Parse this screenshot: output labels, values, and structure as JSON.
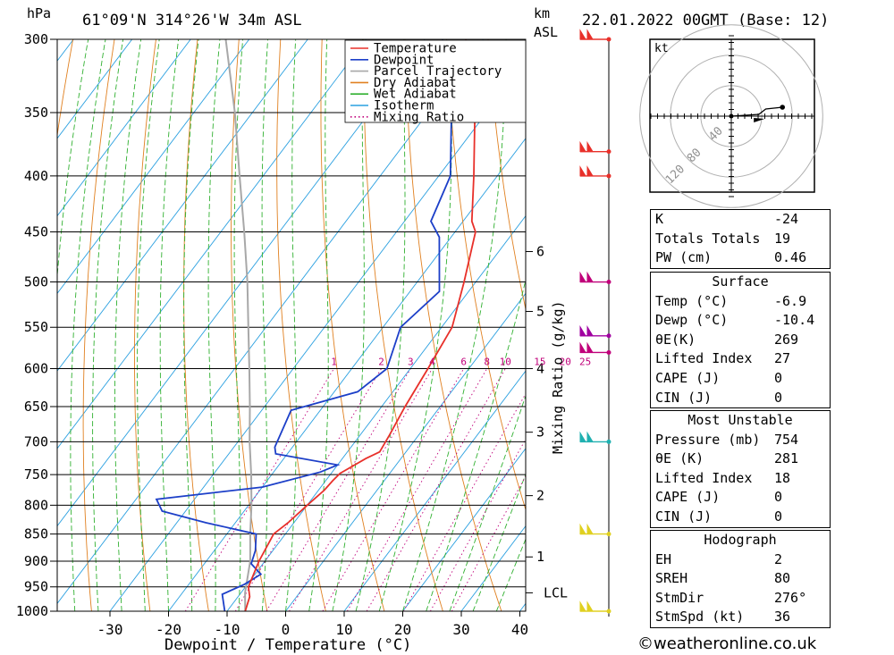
{
  "header": {
    "location": "61°09'N 314°26'W 34m ASL",
    "run": "22.01.2022 00GMT (Base: 12)",
    "hpa_label": "hPa",
    "km_label": "km",
    "asl_label": "ASL"
  },
  "chart_data": {
    "type": "line",
    "xlabel": "Dewpoint / Temperature (°C)",
    "ylabel": "hPa",
    "y2label": "Mixing Ratio (g/kg)",
    "xlim": [
      -40,
      40
    ],
    "ylim": [
      1000,
      300
    ],
    "y_scale": "log",
    "x_ticks": [
      -30,
      -20,
      -10,
      0,
      10,
      20,
      30,
      40
    ],
    "pressure_levels": [
      300,
      350,
      400,
      450,
      500,
      550,
      600,
      650,
      700,
      750,
      800,
      850,
      900,
      950,
      1000
    ],
    "km_ticks": [
      {
        "km": "6",
        "p": 469
      },
      {
        "km": "5",
        "p": 532
      },
      {
        "km": "4",
        "p": 600
      },
      {
        "km": "3",
        "p": 686
      },
      {
        "km": "2",
        "p": 784
      },
      {
        "km": "1",
        "p": 892
      }
    ],
    "lcl": {
      "label": "LCL",
      "p": 962
    },
    "mixing_ratio_labels": [
      "1",
      "2",
      "3",
      "4",
      "6",
      "8",
      "10",
      "15",
      "20",
      "25"
    ],
    "legend": [
      "Temperature",
      "Dewpoint",
      "Parcel Trajectory",
      "Dry Adiabat",
      "Wet Adiabat",
      "Isotherm",
      "Mixing Ratio"
    ],
    "series": [
      {
        "name": "Temperature",
        "color": "#e8302a",
        "points": [
          [
            -6.9,
            1000
          ],
          [
            -8,
            970
          ],
          [
            -9.5,
            950
          ],
          [
            -11,
            900
          ],
          [
            -12,
            850
          ],
          [
            -11,
            830
          ],
          [
            -10,
            800
          ],
          [
            -9,
            775
          ],
          [
            -8.8,
            760
          ],
          [
            -8.5,
            748
          ],
          [
            -6,
            725
          ],
          [
            -4.5,
            715
          ],
          [
            -5,
            690
          ],
          [
            -6,
            650
          ],
          [
            -7,
            600
          ],
          [
            -8.2,
            550
          ],
          [
            -12,
            500
          ],
          [
            -16.5,
            450
          ],
          [
            -18.5,
            440
          ],
          [
            -24,
            400
          ],
          [
            -32,
            350
          ],
          [
            -43,
            300
          ]
        ]
      },
      {
        "name": "Dewpoint",
        "color": "#1c3fc8",
        "points": [
          [
            -10.4,
            1000
          ],
          [
            -13,
            965
          ],
          [
            -10.5,
            945
          ],
          [
            -9,
            925
          ],
          [
            -12,
            905
          ],
          [
            -13,
            880
          ],
          [
            -15,
            850
          ],
          [
            -25,
            830
          ],
          [
            -34,
            810
          ],
          [
            -36.5,
            790
          ],
          [
            -20,
            770
          ],
          [
            -12,
            746
          ],
          [
            -10,
            735
          ],
          [
            -22,
            718
          ],
          [
            -23,
            708
          ],
          [
            -25,
            655
          ],
          [
            -16,
            630
          ],
          [
            -14,
            600
          ],
          [
            -17,
            550
          ],
          [
            -15,
            510
          ],
          [
            -22,
            455
          ],
          [
            -25.5,
            440
          ],
          [
            -28,
            400
          ],
          [
            -36,
            350
          ],
          [
            -47,
            300
          ]
        ]
      },
      {
        "name": "Parcel Trajectory",
        "color": "#a8a8a8",
        "points": [
          [
            -6.9,
            1000
          ],
          [
            -9.3,
            962
          ],
          [
            -12.5,
            900
          ],
          [
            -16,
            850
          ],
          [
            -19.5,
            800
          ],
          [
            -23.5,
            750
          ],
          [
            -28,
            700
          ],
          [
            -32.5,
            650
          ],
          [
            -37.5,
            600
          ],
          [
            -43,
            550
          ],
          [
            -49,
            500
          ],
          [
            -56,
            450
          ],
          [
            -64,
            400
          ],
          [
            -73,
            350
          ],
          [
            -84,
            300
          ]
        ]
      }
    ]
  },
  "winds": [
    {
      "p": 300,
      "color": "#e8302a"
    },
    {
      "p": 380,
      "color": "#e8302a"
    },
    {
      "p": 400,
      "color": "#e8302a"
    },
    {
      "p": 500,
      "color": "#c0007a"
    },
    {
      "p": 560,
      "color": "#a000a0"
    },
    {
      "p": 580,
      "color": "#c0007a"
    },
    {
      "p": 700,
      "color": "#20b0b0"
    },
    {
      "p": 850,
      "color": "#e0d020"
    },
    {
      "p": 1000,
      "color": "#e0d020"
    }
  ],
  "hodograph": {
    "unit": "kt",
    "ring_labels": [
      "40",
      "80",
      "120"
    ],
    "points": [
      [
        0,
        0
      ],
      [
        28,
        -2
      ],
      [
        35,
        -8
      ],
      [
        52,
        -10
      ]
    ],
    "storm": [
      18,
      2
    ]
  },
  "indices": {
    "k_label": "K",
    "k": "-24",
    "tt_label": "Totals Totals",
    "tt": "19",
    "pw_label": "PW (cm)",
    "pw": "0.46"
  },
  "surface": {
    "title": "Surface",
    "temp_label": "Temp (°C)",
    "temp": "-6.9",
    "dewp_label": "Dewp (°C)",
    "dewp": "-10.4",
    "theta_label": "θE(K)",
    "theta": "269",
    "li_label": "Lifted Index",
    "li": "27",
    "cape_label": "CAPE (J)",
    "cape": "0",
    "cin_label": "CIN (J)",
    "cin": "0"
  },
  "most_unstable": {
    "title": "Most Unstable",
    "pressure_label": "Pressure (mb)",
    "pressure": "754",
    "theta_label": "θE (K)",
    "theta": "281",
    "li_label": "Lifted Index",
    "li": "18",
    "cape_label": "CAPE (J)",
    "cape": "0",
    "cin_label": "CIN (J)",
    "cin": "0"
  },
  "hodo_stats": {
    "title": "Hodograph",
    "eh_label": "EH",
    "eh": "2",
    "srеh_label": "SREH",
    "sreh": "80",
    "stmdir_label": "StmDir",
    "stmdir": "276°",
    "stmspd_label": "StmSpd (kt)",
    "stmspd": "36"
  },
  "footer": "©weatheronline.co.uk"
}
